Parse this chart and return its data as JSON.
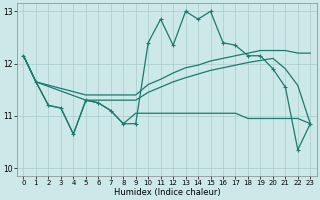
{
  "xlabel": "Humidex (Indice chaleur)",
  "bg_color": "#cce8e8",
  "grid_color": "#aacccc",
  "line_color": "#1a7a6e",
  "xlim": [
    -0.5,
    23.5
  ],
  "ylim": [
    9.85,
    13.15
  ],
  "yticks": [
    10,
    11,
    12,
    13
  ],
  "xticks": [
    0,
    1,
    2,
    3,
    4,
    5,
    6,
    7,
    8,
    9,
    10,
    11,
    12,
    13,
    14,
    15,
    16,
    17,
    18,
    19,
    20,
    21,
    22,
    23
  ],
  "spiky_x": [
    0,
    1,
    2,
    3,
    4,
    5,
    6,
    7,
    8,
    9,
    10,
    11,
    12,
    13,
    14,
    15,
    16,
    17,
    18,
    19,
    20,
    21,
    22,
    23
  ],
  "spiky_y": [
    12.15,
    11.65,
    11.2,
    11.15,
    10.65,
    11.3,
    11.25,
    11.1,
    10.85,
    10.85,
    12.4,
    12.85,
    12.35,
    13.0,
    12.85,
    13.0,
    12.4,
    12.35,
    12.15,
    12.15,
    11.9,
    11.55,
    10.35,
    10.85
  ],
  "flat_x": [
    0,
    1,
    2,
    3,
    4,
    5,
    6,
    7,
    8,
    9,
    10,
    11,
    12,
    13,
    14,
    15,
    16,
    17,
    18,
    19,
    20,
    21,
    22,
    23
  ],
  "flat_y": [
    12.15,
    11.65,
    11.2,
    11.15,
    10.65,
    11.3,
    11.25,
    11.1,
    10.85,
    11.05,
    11.05,
    11.05,
    11.05,
    11.05,
    11.05,
    11.05,
    11.05,
    11.05,
    10.95,
    10.95,
    10.95,
    10.95,
    10.95,
    10.85
  ],
  "rise1_x": [
    0,
    1,
    5,
    9,
    10,
    11,
    12,
    13,
    14,
    15,
    16,
    17,
    18,
    19,
    20,
    21,
    22,
    23
  ],
  "rise1_y": [
    12.15,
    11.65,
    11.4,
    11.4,
    11.6,
    11.7,
    11.82,
    11.92,
    11.97,
    12.05,
    12.1,
    12.15,
    12.2,
    12.25,
    12.25,
    12.25,
    12.2,
    12.2
  ],
  "rise2_x": [
    0,
    1,
    5,
    9,
    10,
    11,
    12,
    13,
    14,
    15,
    16,
    17,
    18,
    19,
    20,
    21,
    22,
    23
  ],
  "rise2_y": [
    12.15,
    11.65,
    11.3,
    11.3,
    11.45,
    11.55,
    11.65,
    11.73,
    11.8,
    11.87,
    11.92,
    11.97,
    12.02,
    12.06,
    12.1,
    11.9,
    11.58,
    10.85
  ]
}
